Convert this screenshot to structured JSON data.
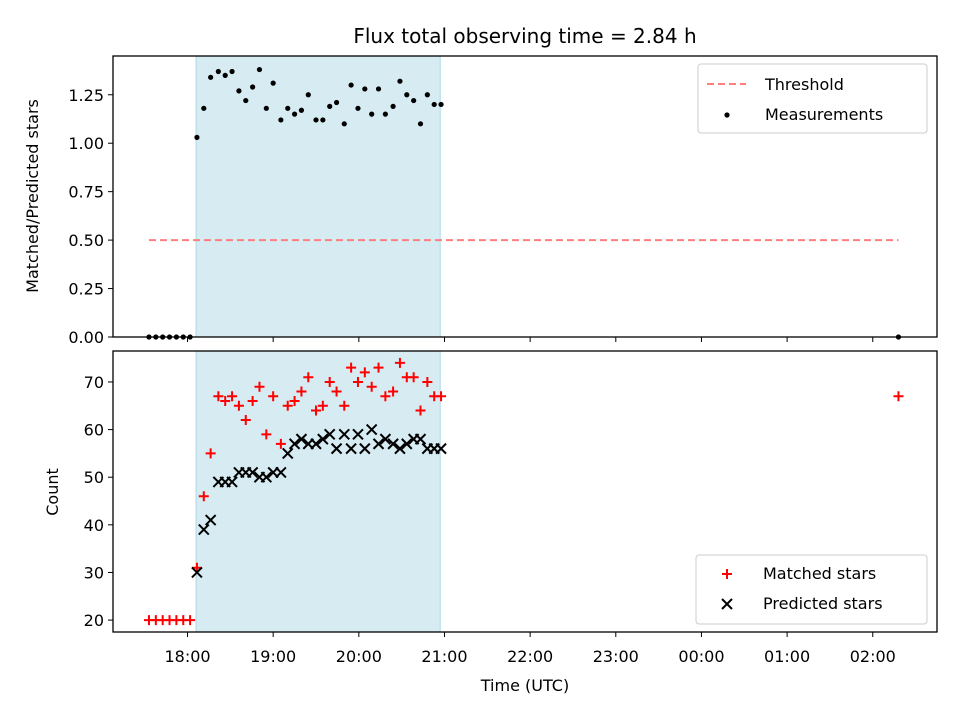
{
  "figure_title": "Flux total observing time = 2.84 h",
  "colors": {
    "span_fill": "#add8e6",
    "threshold": "#ff7f7f",
    "measurement": "#000000",
    "matched": "#ff0000",
    "predicted": "#000000"
  },
  "chart_data": [
    {
      "type": "scatter",
      "title": "Flux total observing time = 2.84 h",
      "xlabel": "",
      "ylabel": "Matched/Predicted stars",
      "xlim_hours": [
        17.13,
        26.75
      ],
      "ylim": [
        0.0,
        1.45
      ],
      "yticks": [
        0.0,
        0.25,
        0.5,
        0.75,
        1.0,
        1.25
      ],
      "ytick_labels": [
        "0.00",
        "0.25",
        "0.50",
        "0.75",
        "1.00",
        "1.25"
      ],
      "grid": false,
      "legend_position": "top-right",
      "observing_span_hours": [
        18.1,
        20.95
      ],
      "series": [
        {
          "name": "Threshold",
          "kind": "dashed-line",
          "x": [
            17.55,
            26.3
          ],
          "y": [
            0.5,
            0.5
          ]
        },
        {
          "name": "Measurements",
          "kind": "dots",
          "x": [
            17.55,
            17.63,
            17.71,
            17.79,
            17.87,
            17.95,
            18.03,
            18.11,
            18.19,
            18.27,
            18.36,
            18.44,
            18.52,
            18.6,
            18.68,
            18.76,
            18.84,
            18.92,
            19.0,
            19.09,
            19.17,
            19.25,
            19.33,
            19.41,
            19.5,
            19.58,
            19.66,
            19.74,
            19.83,
            19.91,
            19.99,
            20.07,
            20.15,
            20.23,
            20.31,
            20.4,
            20.48,
            20.56,
            20.64,
            20.72,
            20.8,
            20.88,
            20.96,
            26.3
          ],
          "y": [
            0.0,
            0.0,
            0.0,
            0.0,
            0.0,
            0.0,
            0.0,
            1.03,
            1.18,
            1.34,
            1.37,
            1.35,
            1.37,
            1.27,
            1.22,
            1.29,
            1.38,
            1.18,
            1.31,
            1.12,
            1.18,
            1.15,
            1.17,
            1.25,
            1.12,
            1.12,
            1.19,
            1.21,
            1.1,
            1.3,
            1.18,
            1.28,
            1.15,
            1.28,
            1.15,
            1.19,
            1.32,
            1.25,
            1.22,
            1.1,
            1.25,
            1.2,
            1.2,
            0.0
          ]
        }
      ]
    },
    {
      "type": "scatter",
      "xlabel": "Time (UTC)",
      "ylabel": "Count",
      "xlim_hours": [
        17.13,
        26.75
      ],
      "ylim": [
        17.5,
        76.5
      ],
      "yticks": [
        20,
        30,
        40,
        50,
        60,
        70
      ],
      "ytick_labels": [
        "20",
        "30",
        "40",
        "50",
        "60",
        "70"
      ],
      "xticks_hours": [
        18,
        19,
        20,
        21,
        22,
        23,
        24,
        25,
        26
      ],
      "xtick_labels": [
        "18:00",
        "19:00",
        "20:00",
        "21:00",
        "22:00",
        "23:00",
        "00:00",
        "01:00",
        "02:00"
      ],
      "grid": false,
      "legend_position": "bottom-right",
      "observing_span_hours": [
        18.1,
        20.95
      ],
      "series": [
        {
          "name": "Matched stars",
          "marker": "plus",
          "x": [
            17.55,
            17.63,
            17.71,
            17.79,
            17.87,
            17.95,
            18.03,
            18.11,
            18.19,
            18.27,
            18.36,
            18.44,
            18.52,
            18.6,
            18.68,
            18.76,
            18.84,
            18.92,
            19.0,
            19.09,
            19.17,
            19.25,
            19.33,
            19.41,
            19.5,
            19.58,
            19.66,
            19.74,
            19.83,
            19.91,
            19.99,
            20.07,
            20.15,
            20.23,
            20.31,
            20.4,
            20.48,
            20.56,
            20.64,
            20.72,
            20.8,
            20.88,
            20.96,
            26.3
          ],
          "y": [
            20,
            20,
            20,
            20,
            20,
            20,
            20,
            31,
            46,
            55,
            67,
            66,
            67,
            65,
            62,
            66,
            69,
            59,
            67,
            57,
            65,
            66,
            68,
            71,
            64,
            65,
            70,
            68,
            65,
            73,
            70,
            72,
            69,
            73,
            67,
            68,
            74,
            71,
            71,
            64,
            70,
            67,
            67,
            67
          ]
        },
        {
          "name": "Predicted stars",
          "marker": "x",
          "x": [
            18.11,
            18.19,
            18.27,
            18.36,
            18.44,
            18.52,
            18.6,
            18.68,
            18.76,
            18.84,
            18.92,
            19.0,
            19.09,
            19.17,
            19.25,
            19.33,
            19.41,
            19.5,
            19.58,
            19.66,
            19.74,
            19.83,
            19.91,
            19.99,
            20.07,
            20.15,
            20.23,
            20.31,
            20.4,
            20.48,
            20.56,
            20.64,
            20.72,
            20.8,
            20.88,
            20.96
          ],
          "y": [
            30,
            39,
            41,
            49,
            49,
            49,
            51,
            51,
            51,
            50,
            50,
            51,
            51,
            55,
            57,
            58,
            57,
            57,
            58,
            59,
            56,
            59,
            56,
            59,
            56,
            60,
            57,
            58,
            57,
            56,
            57,
            58,
            58,
            56,
            56,
            56
          ]
        }
      ]
    }
  ]
}
